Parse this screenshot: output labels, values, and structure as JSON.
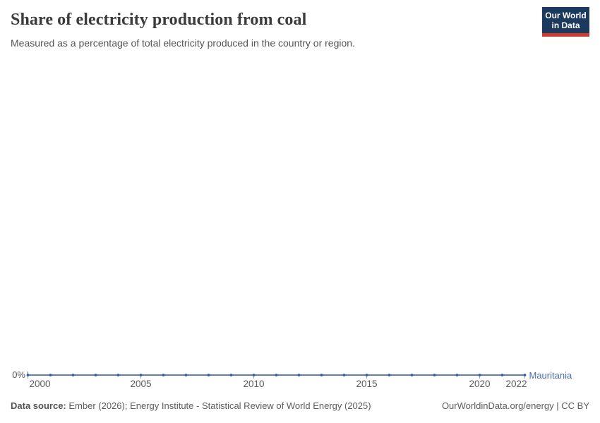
{
  "header": {
    "title": "Share of electricity production from coal",
    "subtitle": "Measured as a percentage of total electricity produced in the country or region.",
    "logo": {
      "line1": "Our World",
      "line2": "in Data"
    }
  },
  "chart_data": {
    "type": "line",
    "title": "Share of electricity production from coal",
    "entity": "Mauritania",
    "unit": "%",
    "x": [
      2000,
      2001,
      2002,
      2003,
      2004,
      2005,
      2006,
      2007,
      2008,
      2009,
      2010,
      2011,
      2012,
      2013,
      2014,
      2015,
      2016,
      2017,
      2018,
      2019,
      2020,
      2021,
      2022
    ],
    "series": [
      {
        "name": "Mauritania",
        "color": "#4C6BAB",
        "point_color": "#3A5E9D",
        "values": [
          0,
          0,
          0,
          0,
          0,
          0,
          0,
          0,
          0,
          0,
          0,
          0,
          0,
          0,
          0,
          0,
          0,
          0,
          0,
          0,
          0,
          0,
          0
        ]
      }
    ],
    "x_ticks": [
      2000,
      2005,
      2010,
      2015,
      2020,
      2022
    ],
    "y_tick_label": "0%",
    "xlabel": "",
    "ylabel": "",
    "grid": false,
    "legend_position": "right-of-line-end"
  },
  "footer": {
    "datasource_label": "Data source:",
    "datasource_text": " Ember (2026); Energy Institute - Statistical Review of World Energy (2025)",
    "attribution": "OurWorldinData.org/energy | CC BY"
  },
  "colors": {
    "line": "#4C6BAB",
    "point": "#3A5E9D",
    "tick": "#9AA8C4",
    "logo_navy": "#1C3A5E",
    "logo_red": "#CF3A31"
  }
}
